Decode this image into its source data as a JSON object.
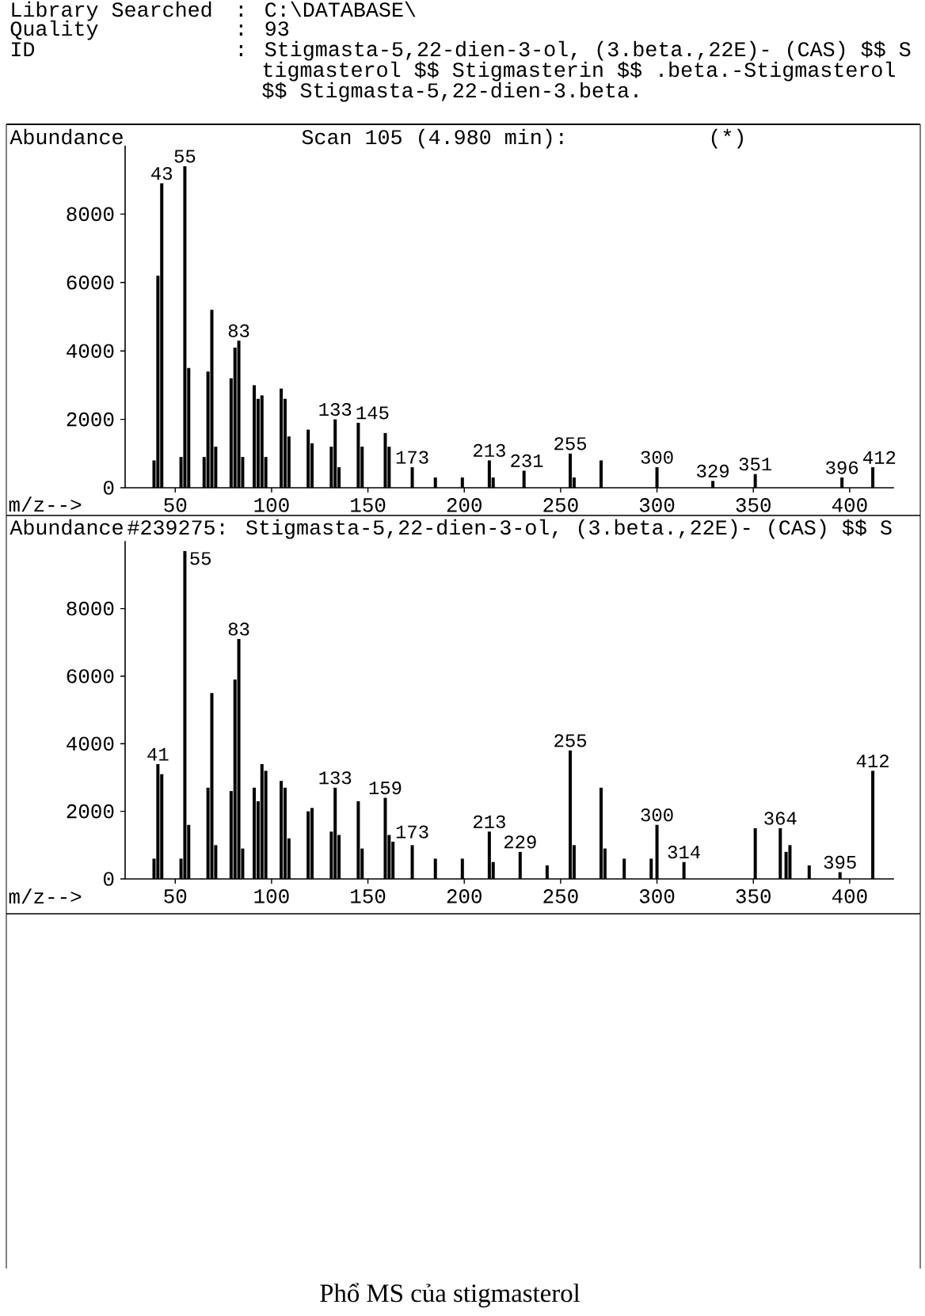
{
  "chart_data": [
    {
      "type": "bar",
      "title": "Scan 105 (4.980 min):",
      "xlabel": "m/z-->",
      "ylabel": "Abundance",
      "color": "#000000",
      "x": [
        39,
        41,
        43,
        53,
        55,
        57,
        65,
        67,
        69,
        71,
        79,
        81,
        83,
        85,
        91,
        93,
        95,
        97,
        105,
        107,
        109,
        119,
        121,
        131,
        133,
        135,
        145,
        147,
        159,
        161,
        173,
        185,
        199,
        213,
        215,
        231,
        255,
        257,
        271,
        300,
        329,
        351,
        396,
        412
      ],
      "values": [
        800,
        6200,
        8900,
        900,
        9400,
        3500,
        900,
        3400,
        5200,
        1200,
        3200,
        4100,
        4300,
        900,
        3000,
        2600,
        2700,
        900,
        2900,
        2600,
        1500,
        1700,
        1300,
        1200,
        2000,
        600,
        1900,
        1200,
        1600,
        1200,
        600,
        300,
        300,
        800,
        300,
        500,
        1000,
        300,
        800,
        600,
        200,
        400,
        300,
        600
      ],
      "xlim": [
        24,
        423
      ],
      "ylim": [
        0,
        10000
      ],
      "xticks": [
        50,
        100,
        150,
        200,
        250,
        300,
        350,
        400
      ],
      "yticks": [
        0,
        2000,
        4000,
        6000,
        8000
      ],
      "annotations": [
        "Library Searched",
        ": C:\\DATABASE\\",
        "Quality",
        ": 93",
        "ID",
        ": Stigmasta-5,22-dien-3-ol, (3.beta.,22E)- (CAS) $$ S",
        "tigmasterol $$ Stigmasterin $$ .beta.-Stigmasterol",
        "$$ Stigmasta-5,22-dien-3.beta.",
        "(*)",
        {
          "text": "43",
          "x": 43,
          "y": 8900
        },
        {
          "text": "55",
          "x": 55,
          "y": 9400
        },
        {
          "text": "83",
          "x": 83,
          "y": 4300
        },
        {
          "text": "133",
          "x": 133,
          "y": 2000
        },
        {
          "text": "145",
          "x": 145,
          "y": 1900
        },
        {
          "text": "173",
          "x": 173,
          "y": 600
        },
        {
          "text": "213",
          "x": 213,
          "y": 800
        },
        {
          "text": "231",
          "x": 231,
          "y": 500
        },
        {
          "text": "255",
          "x": 255,
          "y": 1000
        },
        {
          "text": "300",
          "x": 300,
          "y": 600
        },
        {
          "text": "329",
          "x": 329,
          "y": 200
        },
        {
          "text": "351",
          "x": 351,
          "y": 400
        },
        {
          "text": "396",
          "x": 396,
          "y": 300
        },
        {
          "text": "412",
          "x": 412,
          "y": 600
        }
      ]
    },
    {
      "type": "bar",
      "title": "#239275: Stigmasta-5,22-dien-3-ol, (3.beta.,22E)- (CAS) $$ S",
      "xlabel": "m/z-->",
      "ylabel": "Abundance",
      "color": "#000000",
      "x": [
        39,
        41,
        43,
        53,
        55,
        57,
        67,
        69,
        71,
        79,
        81,
        83,
        85,
        91,
        93,
        95,
        97,
        105,
        107,
        109,
        119,
        121,
        131,
        133,
        135,
        145,
        147,
        159,
        161,
        163,
        173,
        185,
        199,
        213,
        215,
        229,
        243,
        255,
        257,
        271,
        273,
        283,
        297,
        300,
        314,
        351,
        364,
        367,
        369,
        379,
        395,
        412
      ],
      "values": [
        600,
        3400,
        3100,
        600,
        9700,
        1600,
        2700,
        5500,
        1000,
        2600,
        5900,
        7100,
        900,
        2700,
        2300,
        3400,
        3200,
        2900,
        2700,
        1200,
        2000,
        2100,
        1400,
        2700,
        1300,
        2300,
        900,
        2400,
        1300,
        1100,
        1000,
        600,
        600,
        1400,
        500,
        800,
        400,
        3800,
        1000,
        2700,
        900,
        600,
        600,
        1600,
        500,
        1500,
        1500,
        800,
        1000,
        400,
        200,
        3200
      ],
      "xlim": [
        24,
        423
      ],
      "ylim": [
        0,
        10000
      ],
      "xticks": [
        50,
        100,
        150,
        200,
        250,
        300,
        350,
        400
      ],
      "yticks": [
        0,
        2000,
        4000,
        6000,
        8000
      ],
      "annotations": [
        "Phổ MS của stigmasterol",
        {
          "text": "41",
          "x": 41,
          "y": 3400
        },
        {
          "text": "55",
          "x": 55,
          "y": 9700
        },
        {
          "text": "83",
          "x": 83,
          "y": 7100
        },
        {
          "text": "133",
          "x": 133,
          "y": 2700
        },
        {
          "text": "159",
          "x": 159,
          "y": 2400
        },
        {
          "text": "173",
          "x": 173,
          "y": 1000
        },
        {
          "text": "213",
          "x": 213,
          "y": 1400
        },
        {
          "text": "229",
          "x": 229,
          "y": 800
        },
        {
          "text": "255",
          "x": 255,
          "y": 3800
        },
        {
          "text": "300",
          "x": 300,
          "y": 1600
        },
        {
          "text": "314",
          "x": 314,
          "y": 500
        },
        {
          "text": "364",
          "x": 364,
          "y": 1500
        },
        {
          "text": "395",
          "x": 395,
          "y": 200
        },
        {
          "text": "412",
          "x": 412,
          "y": 3200
        }
      ]
    }
  ]
}
